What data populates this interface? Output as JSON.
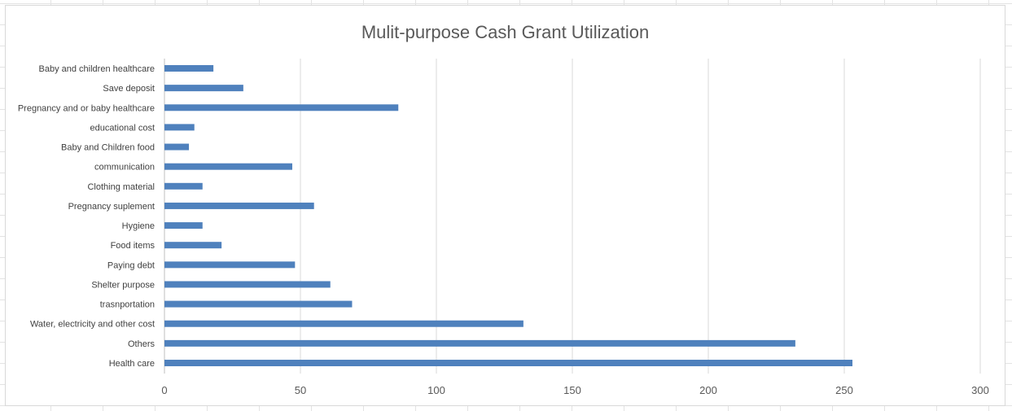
{
  "chart_data": {
    "type": "bar",
    "orientation": "horizontal",
    "title": "Mulit-purpose Cash Grant Utilization",
    "categories": [
      "Health care",
      "Others",
      "Water, electricity and other cost",
      "trasnportation",
      "Shelter purpose",
      "Paying debt",
      "Food items",
      "Hygiene",
      "Pregnancy suplement",
      "Clothing material",
      "communication",
      "Baby and Children food",
      "educational cost",
      "Pregnancy and or baby healthcare",
      "Save deposit",
      "Baby and children healthcare"
    ],
    "values": [
      253,
      232,
      132,
      69,
      61,
      48,
      21,
      14,
      55,
      14,
      47,
      9,
      11,
      86,
      29,
      18
    ],
    "xlim": [
      0,
      300
    ],
    "xticks": [
      0,
      50,
      100,
      150,
      200,
      250,
      300
    ],
    "xlabel": "",
    "ylabel": "",
    "grid": "vertical",
    "legend": "none",
    "bar_color": "#4f81bd"
  }
}
